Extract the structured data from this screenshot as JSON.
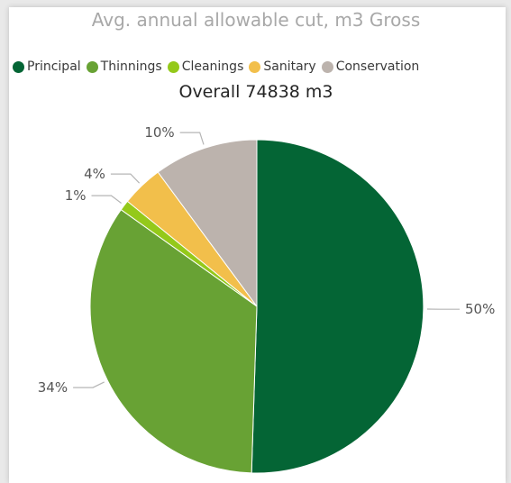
{
  "colors": {
    "Principal": "#046535",
    "Thinnings": "#68a234",
    "Cleanings": "#94c91a",
    "Sanitary": "#f2bf4b",
    "Conservation": "#bcb3ad"
  },
  "chart_data": {
    "type": "pie",
    "title": "Avg. annual allowable cut, m3 Gross",
    "subtitle": "Overall 74838 m3",
    "legend_position": "top-left",
    "categories": [
      "Principal",
      "Thinnings",
      "Cleanings",
      "Sanitary",
      "Conservation"
    ],
    "values": [
      50,
      34,
      1,
      4,
      10
    ],
    "labels": [
      "50%",
      "34%",
      "1%",
      "4%",
      "10%"
    ]
  }
}
